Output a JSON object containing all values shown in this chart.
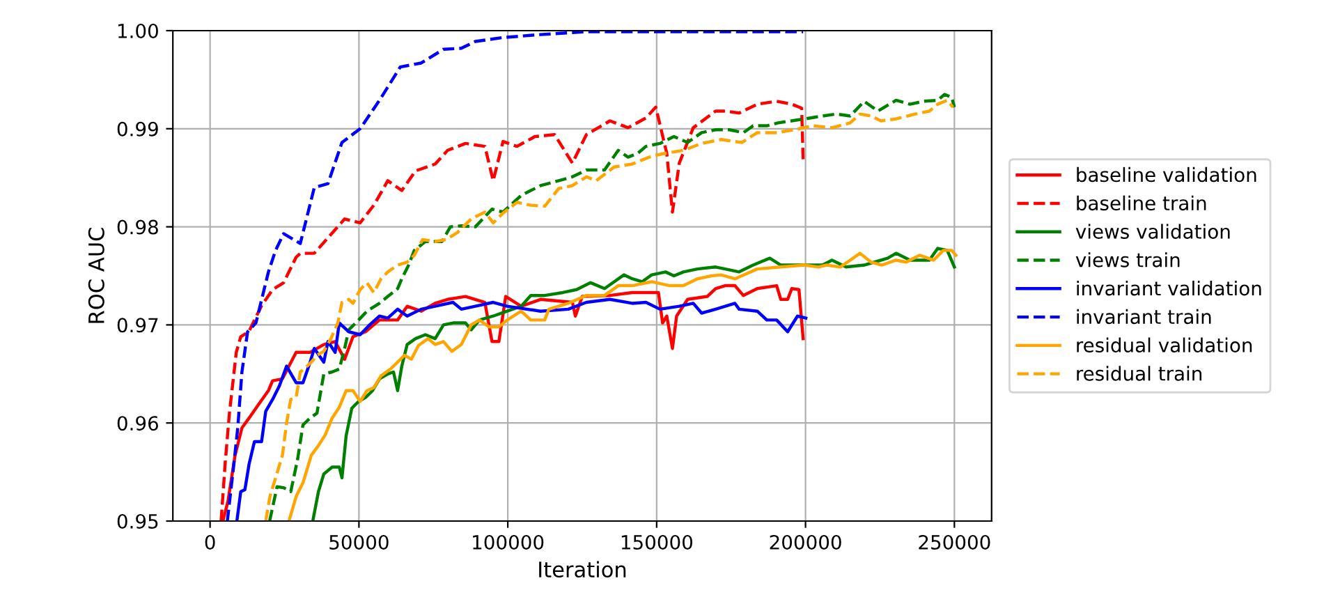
{
  "chart_data": {
    "type": "line",
    "xlabel": "Iteration",
    "ylabel": "ROC AUC",
    "xlim": [
      -12500,
      262500
    ],
    "ylim": [
      0.95,
      1.0
    ],
    "xticks": [
      0,
      50000,
      100000,
      150000,
      200000,
      250000
    ],
    "yticks": [
      0.95,
      0.96,
      0.97,
      0.98,
      0.99,
      {
        "value": 1.0,
        "label": "1.00"
      }
    ],
    "grid": true,
    "legend": "right",
    "marker": "none",
    "series": [
      {
        "name": "baseline validation",
        "color": "#ff0000",
        "line_style": "solid",
        "x": [
          4300,
          6000,
          8400,
          10700,
          13100,
          16300,
          19600,
          21000,
          24300,
          28900,
          33600,
          38200,
          42000,
          45200,
          48000,
          52200,
          56900,
          63000,
          66200,
          70900,
          75600,
          79800,
          85800,
          92300,
          94700,
          97000,
          99300,
          104500,
          111000,
          121700,
          122700,
          125000,
          134300,
          141800,
          150600,
          152000,
          153400,
          155300,
          156700,
          160400,
          167000,
          169800,
          173000,
          176300,
          179100,
          183800,
          190300,
          191700,
          194000,
          195400,
          197800,
          199200
        ],
        "values": [
          0.95,
          0.952,
          0.9567,
          0.9595,
          0.9605,
          0.9619,
          0.9633,
          0.9643,
          0.9645,
          0.9672,
          0.9672,
          0.968,
          0.9683,
          0.9665,
          0.9688,
          0.9693,
          0.9705,
          0.9705,
          0.9719,
          0.9714,
          0.9722,
          0.9726,
          0.9729,
          0.9723,
          0.9683,
          0.9683,
          0.9729,
          0.9719,
          0.9726,
          0.9723,
          0.9709,
          0.9729,
          0.973,
          0.9733,
          0.9733,
          0.9702,
          0.9709,
          0.9676,
          0.9709,
          0.9726,
          0.9729,
          0.9737,
          0.974,
          0.974,
          0.973,
          0.9737,
          0.974,
          0.9726,
          0.9726,
          0.9737,
          0.9736,
          0.9686
        ]
      },
      {
        "name": "baseline train",
        "color": "#ff0000",
        "line_style": "dashed",
        "x": [
          3700,
          5100,
          6500,
          8800,
          10300,
          13000,
          17200,
          21000,
          24700,
          28900,
          30300,
          35000,
          42000,
          45200,
          50400,
          55000,
          59700,
          64400,
          69000,
          75600,
          79800,
          85800,
          92300,
          95100,
          98400,
          103100,
          109100,
          115700,
          121700,
          126400,
          134300,
          140400,
          146400,
          149700,
          153400,
          155300,
          157600,
          162300,
          169800,
          173000,
          177700,
          183800,
          190300,
          195400,
          198700,
          199200
        ],
        "values": [
          0.95,
          0.956,
          0.961,
          0.9672,
          0.9688,
          0.9693,
          0.9719,
          0.9736,
          0.9743,
          0.9769,
          0.9773,
          0.9773,
          0.9797,
          0.9808,
          0.9804,
          0.9822,
          0.9847,
          0.9837,
          0.9857,
          0.9864,
          0.9878,
          0.9885,
          0.9882,
          0.9847,
          0.9887,
          0.9882,
          0.9892,
          0.9894,
          0.9865,
          0.9894,
          0.9908,
          0.9901,
          0.9911,
          0.9922,
          0.9875,
          0.9815,
          0.9865,
          0.9901,
          0.9918,
          0.9918,
          0.9916,
          0.9925,
          0.9928,
          0.9925,
          0.9921,
          0.9868
        ]
      },
      {
        "name": "views validation",
        "color": "#008000",
        "line_style": "solid",
        "x": [
          34500,
          36400,
          38200,
          41000,
          43400,
          44300,
          45700,
          47600,
          49900,
          52200,
          54600,
          56900,
          59700,
          61600,
          63000,
          64400,
          66200,
          69000,
          72300,
          75600,
          78400,
          81600,
          85800,
          87700,
          90500,
          95100,
          99800,
          104500,
          107700,
          112400,
          118500,
          123100,
          127800,
          132500,
          139000,
          141800,
          145100,
          148300,
          153000,
          155800,
          159000,
          163700,
          169800,
          173000,
          177700,
          182400,
          188000,
          191700,
          199600,
          205700,
          208900,
          213600,
          219700,
          227600,
          230400,
          235100,
          241600,
          244400,
          247600,
          250000
        ],
        "values": [
          0.95,
          0.953,
          0.9548,
          0.9555,
          0.9555,
          0.9544,
          0.9587,
          0.9615,
          0.9622,
          0.9626,
          0.9633,
          0.9645,
          0.965,
          0.9652,
          0.9633,
          0.9658,
          0.968,
          0.9686,
          0.969,
          0.9686,
          0.97,
          0.9702,
          0.9702,
          0.9695,
          0.9705,
          0.9709,
          0.9714,
          0.9719,
          0.973,
          0.973,
          0.9733,
          0.9736,
          0.9743,
          0.9737,
          0.9751,
          0.9747,
          0.9744,
          0.9751,
          0.9754,
          0.975,
          0.9754,
          0.9757,
          0.9759,
          0.9757,
          0.9754,
          0.9761,
          0.9768,
          0.9761,
          0.9761,
          0.9761,
          0.9766,
          0.9759,
          0.9761,
          0.9768,
          0.9773,
          0.9766,
          0.9766,
          0.9778,
          0.9776,
          0.9759
        ]
      },
      {
        "name": "views train",
        "color": "#008000",
        "line_style": "dashed",
        "x": [
          20000,
          22500,
          24700,
          27100,
          29400,
          31200,
          33600,
          35900,
          38200,
          41000,
          43400,
          45200,
          46600,
          49900,
          52700,
          56900,
          59700,
          63000,
          64400,
          66700,
          68600,
          72300,
          77900,
          80700,
          84400,
          89100,
          94700,
          98400,
          104500,
          111000,
          117100,
          121700,
          126400,
          132500,
          137100,
          140400,
          143700,
          146400,
          151100,
          155800,
          160400,
          165100,
          169800,
          174400,
          179100,
          182400,
          187000,
          190800,
          199600,
          205700,
          210300,
          215000,
          219700,
          224300,
          230400,
          235100,
          239700,
          244400,
          246700,
          249100,
          250000
        ],
        "values": [
          0.95,
          0.9535,
          0.9534,
          0.953,
          0.9563,
          0.9598,
          0.9605,
          0.961,
          0.965,
          0.9652,
          0.9655,
          0.9676,
          0.9695,
          0.9705,
          0.9714,
          0.9722,
          0.9729,
          0.9737,
          0.9747,
          0.9761,
          0.9776,
          0.9785,
          0.9785,
          0.98,
          0.9801,
          0.98,
          0.9818,
          0.9815,
          0.9832,
          0.9842,
          0.9847,
          0.9851,
          0.9858,
          0.9858,
          0.9878,
          0.9871,
          0.9875,
          0.9882,
          0.9885,
          0.9892,
          0.9886,
          0.9896,
          0.9899,
          0.9899,
          0.9896,
          0.9903,
          0.9903,
          0.9906,
          0.991,
          0.9913,
          0.9915,
          0.9913,
          0.9928,
          0.9918,
          0.9929,
          0.9925,
          0.9928,
          0.9929,
          0.9935,
          0.9932,
          0.9922
        ]
      },
      {
        "name": "invariant validation",
        "color": "#0000ff",
        "line_style": "solid",
        "x": [
          9000,
          10300,
          11700,
          13100,
          14900,
          17300,
          18700,
          21000,
          23300,
          25700,
          28900,
          31200,
          33600,
          35000,
          38200,
          39600,
          42000,
          43400,
          46600,
          50400,
          53600,
          56900,
          59700,
          63000,
          66200,
          70900,
          75600,
          81600,
          84400,
          89100,
          95100,
          99800,
          111000,
          120300,
          126400,
          134300,
          141800,
          146400,
          151100,
          157600,
          162300,
          165100,
          169800,
          176300,
          177700,
          183800,
          187000,
          190300,
          194000,
          197300,
          200100
        ],
        "values": [
          0.95,
          0.953,
          0.9532,
          0.9558,
          0.9581,
          0.9581,
          0.9612,
          0.9624,
          0.9638,
          0.9658,
          0.9641,
          0.9641,
          0.9662,
          0.9676,
          0.9662,
          0.9683,
          0.9672,
          0.9702,
          0.9693,
          0.969,
          0.97,
          0.9709,
          0.9707,
          0.9716,
          0.9709,
          0.9716,
          0.9719,
          0.9723,
          0.9716,
          0.9719,
          0.9723,
          0.9719,
          0.9714,
          0.9716,
          0.9723,
          0.9726,
          0.9722,
          0.9723,
          0.9716,
          0.9719,
          0.9722,
          0.9712,
          0.9716,
          0.9722,
          0.9716,
          0.9714,
          0.9705,
          0.9705,
          0.9693,
          0.9709,
          0.9707
        ]
      },
      {
        "name": "invariant train",
        "color": "#0000ff",
        "line_style": "dashed",
        "x": [
          5800,
          7800,
          9300,
          10700,
          12600,
          15400,
          19600,
          22000,
          24700,
          30300,
          35000,
          39600,
          44300,
          50400,
          56900,
          63900,
          70900,
          78400,
          84400,
          89100,
          98400,
          111000,
          126400,
          149700,
          199200
        ],
        "values": [
          0.95,
          0.9553,
          0.9595,
          0.9652,
          0.9693,
          0.9702,
          0.9754,
          0.9776,
          0.9793,
          0.9783,
          0.984,
          0.9844,
          0.9886,
          0.99,
          0.9929,
          0.9963,
          0.9967,
          0.9981,
          0.9982,
          0.9989,
          0.9993,
          0.9996,
          0.9999,
          0.9999,
          0.9999
        ]
      },
      {
        "name": "residual validation",
        "color": "#ffa500",
        "line_style": "solid",
        "x": [
          26500,
          28900,
          31200,
          32600,
          34000,
          36400,
          38700,
          41000,
          43400,
          45700,
          48000,
          50400,
          52700,
          55000,
          57400,
          60600,
          63000,
          65300,
          67600,
          70000,
          73200,
          75600,
          78400,
          81200,
          84400,
          87700,
          90500,
          93700,
          97000,
          99800,
          104500,
          107700,
          112400,
          113800,
          120300,
          126400,
          132500,
          137100,
          141800,
          148300,
          154400,
          159000,
          163700,
          168400,
          171600,
          176300,
          183800,
          191700,
          199600,
          204300,
          207100,
          211700,
          215000,
          218300,
          222000,
          225700,
          230400,
          233800,
          238300,
          243000,
          246300,
          249100,
          250500
        ],
        "values": [
          0.95,
          0.9525,
          0.9539,
          0.9553,
          0.9567,
          0.9577,
          0.9588,
          0.9605,
          0.9616,
          0.9633,
          0.9633,
          0.9622,
          0.9633,
          0.9636,
          0.9648,
          0.9655,
          0.9662,
          0.9669,
          0.9665,
          0.9679,
          0.9686,
          0.968,
          0.9683,
          0.9673,
          0.968,
          0.97,
          0.9705,
          0.9698,
          0.9698,
          0.9705,
          0.9714,
          0.9705,
          0.9705,
          0.9716,
          0.9722,
          0.973,
          0.973,
          0.974,
          0.974,
          0.9744,
          0.974,
          0.974,
          0.9747,
          0.975,
          0.9751,
          0.9747,
          0.9757,
          0.9759,
          0.9761,
          0.9759,
          0.9761,
          0.9759,
          0.9766,
          0.9773,
          0.9764,
          0.9761,
          0.9766,
          0.9764,
          0.9771,
          0.9766,
          0.9776,
          0.9776,
          0.9771
        ]
      },
      {
        "name": "residual train",
        "color": "#ffa500",
        "line_style": "dashed",
        "x": [
          18700,
          20100,
          22400,
          24300,
          25700,
          27100,
          28900,
          30300,
          32600,
          34000,
          35900,
          38200,
          40600,
          42900,
          44300,
          46600,
          48000,
          50400,
          52700,
          55000,
          57400,
          59700,
          63000,
          66200,
          68600,
          71400,
          75600,
          79300,
          83000,
          87700,
          92300,
          95100,
          98400,
          103100,
          107700,
          112400,
          117100,
          121700,
          126400,
          129700,
          135700,
          141800,
          148300,
          153000,
          159000,
          165100,
          171600,
          178600,
          183800,
          190300,
          196400,
          202400,
          208900,
          215000,
          218300,
          222000,
          225300,
          230400,
          236900,
          241600,
          244400,
          247600,
          249500
        ],
        "values": [
          0.95,
          0.9525,
          0.9548,
          0.9567,
          0.96,
          0.9624,
          0.9626,
          0.9652,
          0.9658,
          0.9662,
          0.9669,
          0.9673,
          0.9686,
          0.9702,
          0.9723,
          0.9726,
          0.9722,
          0.9736,
          0.9743,
          0.9733,
          0.9747,
          0.9754,
          0.9761,
          0.9764,
          0.9771,
          0.9787,
          0.9785,
          0.9787,
          0.9794,
          0.9808,
          0.9815,
          0.9804,
          0.9814,
          0.9825,
          0.9822,
          0.9821,
          0.9839,
          0.9842,
          0.9851,
          0.9847,
          0.9861,
          0.9864,
          0.9872,
          0.9875,
          0.9878,
          0.9885,
          0.9889,
          0.9886,
          0.9896,
          0.9896,
          0.9899,
          0.9903,
          0.9901,
          0.9906,
          0.9915,
          0.9913,
          0.9908,
          0.991,
          0.9915,
          0.9918,
          0.9925,
          0.9929,
          0.9922
        ]
      }
    ]
  }
}
